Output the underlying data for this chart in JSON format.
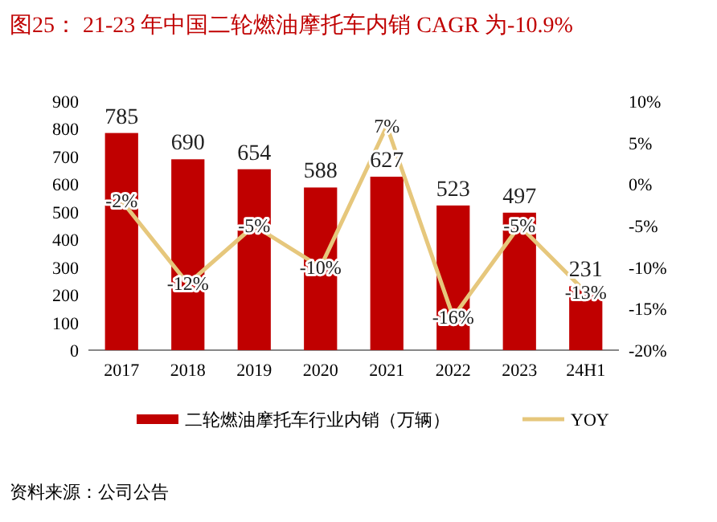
{
  "chart_data": {
    "type": "bar",
    "title": "图25：  21-23 年中国二轮燃油摩托车内销 CAGR 为-10.9%",
    "categories": [
      "2017",
      "2018",
      "2019",
      "2020",
      "2021",
      "2022",
      "2023",
      "24H1"
    ],
    "series": [
      {
        "name": "二轮燃油摩托车行业内销（万辆）",
        "color": "#c00000",
        "values": [
          785,
          690,
          654,
          588,
          627,
          523,
          497,
          231
        ],
        "value_labels": [
          "785",
          "690",
          "654",
          "588",
          "627",
          "523",
          "497",
          "231"
        ]
      },
      {
        "name": "YOY",
        "type": "line",
        "axis": "y2",
        "color": "#e6c77c",
        "values": [
          -2,
          -12,
          -5,
          -10,
          7,
          -16,
          -5,
          -13
        ],
        "value_labels": [
          "-2%",
          "-12%",
          "-5%",
          "-10%",
          "7%",
          "-16%",
          "-5%",
          "-13%"
        ]
      }
    ],
    "ylim": [
      0,
      900
    ],
    "yticks": [
      0,
      100,
      200,
      300,
      400,
      500,
      600,
      700,
      800,
      900
    ],
    "y2lim": [
      -20,
      10
    ],
    "y2ticks": [
      {
        "value": -20,
        "label": "-20%"
      },
      {
        "value": -15,
        "label": "-15%"
      },
      {
        "value": -10,
        "label": "-10%"
      },
      {
        "value": -5,
        "label": "-5%"
      },
      {
        "value": 0,
        "label": "0%"
      },
      {
        "value": 5,
        "label": "5%"
      },
      {
        "value": 10,
        "label": "10%"
      }
    ],
    "legend": "bottom",
    "annotations": [
      "资料来源：公司公告"
    ]
  }
}
